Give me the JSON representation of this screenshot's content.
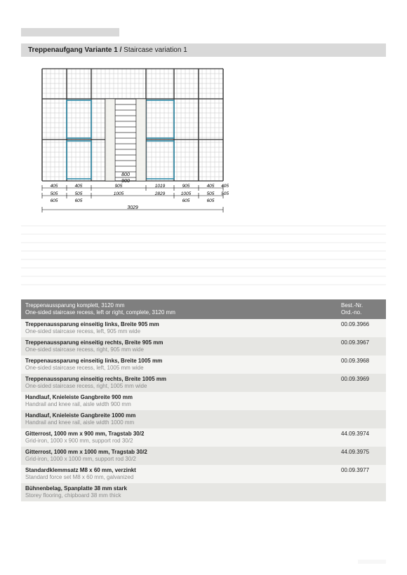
{
  "header": {
    "title_de": "",
    "title_en": ""
  },
  "subband": {
    "bold": "Treppenaufgang Variante 1 / ",
    "rest": "Staircase variation 1"
  },
  "diagram": {
    "dims_bottom_small": [
      "405",
      "405",
      "905",
      "1019",
      "905",
      "405",
      "405"
    ],
    "dims_bottom_mid": [
      "505",
      "505",
      "1005",
      "2829",
      "1005",
      "505",
      "505"
    ],
    "dims_bottom_low": [
      "605",
      "605",
      "",
      "",
      "605",
      "605"
    ],
    "total": "3029",
    "center_w": [
      "800",
      "900"
    ]
  },
  "table": {
    "header": {
      "desc_de": "Treppenaussparung komplett, 3120 mm",
      "desc_en": "One-sided staircase recess, left or right, complete, 3120 mm",
      "ord_de": "Best.-Nr.",
      "ord_en": "Ord.-no."
    },
    "rows": [
      {
        "de": "Treppenaussparung einseitig links, Breite 905 mm",
        "en": "One-sided staircase recess, left, 905 mm wide",
        "ord": "00.09.3966"
      },
      {
        "de": "Treppenaussparung einseitig rechts, Breite 905 mm",
        "en": "One-sided staircase recess, right, 905 mm wide",
        "ord": "00.09.3967"
      },
      {
        "de": "Treppenaussparung einseitig links, Breite 1005 mm",
        "en": "One-sided staircase recess, left, 1005 mm wide",
        "ord": "00.09.3968"
      },
      {
        "de": "Treppenaussparung einseitig rechts, Breite 1005 mm",
        "en": "One-sided staircase recess, right, 1005 mm wide",
        "ord": "00.09.3969"
      },
      {
        "de": "Handlauf, Knieleiste Gangbreite 900 mm",
        "en": "Handrail and knee rail, aisle width 900 mm",
        "ord": ""
      },
      {
        "de": "Handlauf, Knieleiste Gangbreite 1000 mm",
        "en": "Handrail and knee rail, aisle width 1000 mm",
        "ord": ""
      },
      {
        "de": "Gitterrost, 1000 mm x 900 mm, Tragstab 30/2",
        "en": "Grid-iron, 1000 x 900 mm, support rod 30/2",
        "ord": "44.09.3974"
      },
      {
        "de": "Gitterrost, 1000 mm x 1000 mm, Tragstab 30/2",
        "en": "Grid-iron, 1000 x 1000 mm, support rod 30/2",
        "ord": "44.09.3975"
      },
      {
        "de": "Standardklemmsatz M8 x 60 mm, verzinkt",
        "en": "Standard force set M8 x 60 mm, galvanized",
        "ord": "00.09.3977"
      },
      {
        "de": "Bühnenbelag, Spanplatte 38 mm stark",
        "en": "Storey flooring, chipboard 38 mm thick",
        "ord": ""
      }
    ]
  }
}
